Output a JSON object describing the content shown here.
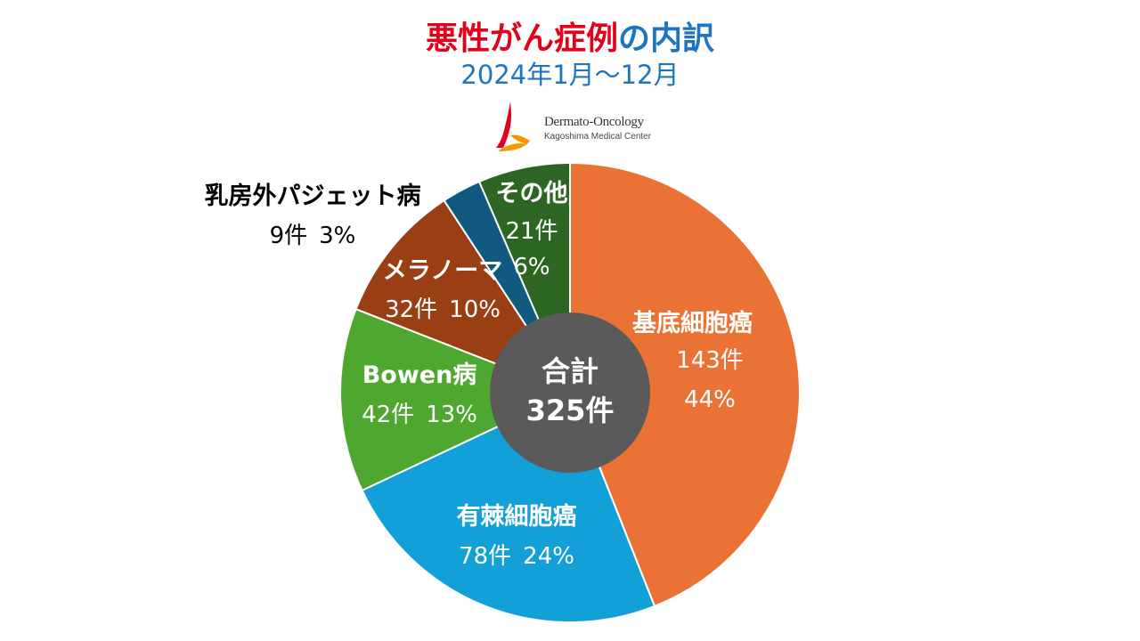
{
  "header": {
    "title_part1": "悪性がん症例",
    "title_part2": "の内訳",
    "subtitle": "2024年1月～12月"
  },
  "logo": {
    "line1": "Dermato-Oncology",
    "line2": "Kagoshima Medical Center",
    "colors": [
      "#e2001a",
      "#f39800"
    ]
  },
  "chart_data": {
    "type": "pie",
    "title": "悪性がん症例の内訳",
    "subtitle": "2024年1月～12月",
    "total_label_line1": "合計",
    "total_label_line2": "325件",
    "total": 325,
    "slices": [
      {
        "name": "基底細胞癌",
        "count": 143,
        "count_label": "143件",
        "percent_label": "44%",
        "color": "#ea7234"
      },
      {
        "name": "有棘細胞癌",
        "count": 78,
        "count_label": "78件",
        "percent_label": "24%",
        "color": "#139fd8"
      },
      {
        "name": "Bowen病",
        "count": 42,
        "count_label": "42件",
        "percent_label": "13%",
        "color": "#4ea72e"
      },
      {
        "name": "メラノーマ",
        "count": 32,
        "count_label": "32件",
        "percent_label": "10%",
        "color": "#9a3f14"
      },
      {
        "name": "乳房外パジェット病",
        "count": 9,
        "count_label": "9件",
        "percent_label": "3%",
        "color": "#0f5a7e"
      },
      {
        "name": "その他",
        "count": 21,
        "count_label": "21件",
        "percent_label": "6%",
        "color": "#2d6622"
      }
    ],
    "center_color": "#5a5a5a",
    "legend": "none"
  }
}
